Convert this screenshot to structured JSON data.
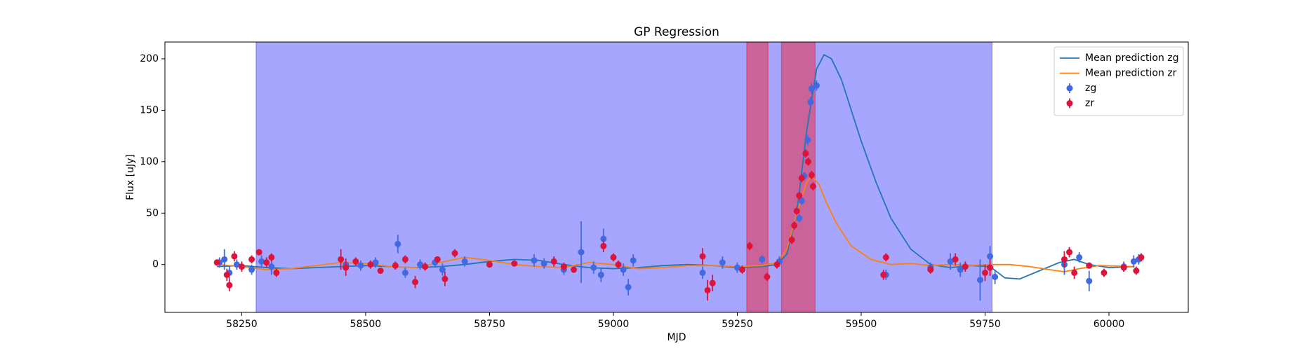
{
  "chart_data": {
    "type": "line",
    "title": "GP Regression",
    "x_label": "MJD",
    "y_label": "Flux [uJy]",
    "xlim": [
      58095,
      60160
    ],
    "ylim": [
      -46.5,
      216.3
    ],
    "xticks": [
      58250,
      58500,
      58750,
      59000,
      59250,
      59500,
      59750,
      60000
    ],
    "yticks": [
      0,
      50,
      100,
      150,
      200
    ],
    "legend": "upper right",
    "spans": [
      {
        "xlim": [
          58279,
          59764
        ],
        "color": "#0000ff",
        "opacity": 0.35
      },
      {
        "xlim": [
          59269,
          59312
        ],
        "color": "#ff0000",
        "opacity": 0.4
      },
      {
        "xlim": [
          59339,
          59407
        ],
        "color": "#ff0000",
        "opacity": 0.4
      }
    ],
    "series": [
      {
        "name": "Mean prediction zg",
        "kind": "line",
        "color": "#1f77b4",
        "x": [
          58200,
          58250,
          58300,
          58350,
          58400,
          58450,
          58500,
          58550,
          58600,
          58650,
          58700,
          58750,
          58800,
          58850,
          58900,
          58950,
          59000,
          59050,
          59100,
          59150,
          59200,
          59250,
          59300,
          59330,
          59350,
          59370,
          59390,
          59410,
          59425,
          59440,
          59460,
          59480,
          59500,
          59530,
          59560,
          59600,
          59640,
          59680,
          59720,
          59760,
          59790,
          59820,
          59860,
          59900,
          59930,
          59960,
          60000,
          60050
        ],
        "values": [
          -2,
          -1,
          -3,
          -4,
          -3,
          -2,
          -1,
          -2,
          -3,
          -2,
          0,
          3,
          5,
          4,
          0,
          -3,
          -4,
          -3,
          -1,
          0,
          -1,
          -3,
          -2,
          0,
          10,
          50,
          130,
          190,
          204,
          200,
          180,
          150,
          120,
          80,
          45,
          15,
          0,
          -3,
          -1,
          -2,
          -13,
          -14,
          -6,
          2,
          5,
          0,
          -3,
          -2
        ]
      },
      {
        "name": "Mean prediction zr",
        "kind": "line",
        "color": "#ff7f0e",
        "x": [
          58200,
          58250,
          58300,
          58350,
          58400,
          58450,
          58500,
          58550,
          58600,
          58650,
          58700,
          58750,
          58800,
          58850,
          58900,
          58950,
          59000,
          59050,
          59100,
          59150,
          59200,
          59250,
          59300,
          59330,
          59350,
          59370,
          59390,
          59400,
          59415,
          59430,
          59450,
          59480,
          59520,
          59560,
          59600,
          59640,
          59680,
          59720,
          59760,
          59800,
          59840,
          59880,
          59910,
          59940,
          59980,
          60050
        ],
        "values": [
          0,
          -2,
          -5,
          -4,
          -1,
          2,
          1,
          -2,
          -3,
          2,
          7,
          4,
          0,
          -2,
          -3,
          2,
          0,
          -4,
          -3,
          -1,
          -1,
          -2,
          -1,
          2,
          15,
          50,
          80,
          86,
          78,
          60,
          40,
          18,
          5,
          0,
          1,
          -1,
          0,
          -1,
          0,
          0,
          -2,
          -5,
          -7,
          -4,
          -1,
          -2
        ]
      },
      {
        "name": "zg",
        "kind": "errorbar",
        "color": "#4169e1",
        "x": [
          58205,
          58215,
          58225,
          58240,
          58270,
          58290,
          58310,
          58460,
          58490,
          58520,
          58565,
          58580,
          58610,
          58640,
          58655,
          58700,
          58840,
          58860,
          58900,
          58935,
          58960,
          58975,
          58980,
          59020,
          59030,
          59040,
          59180,
          59220,
          59250,
          59300,
          59335,
          59375,
          59380,
          59385,
          59392,
          59398,
          59400,
          59410,
          59550,
          59640,
          59680,
          59700,
          59740,
          59760,
          59770,
          59910,
          59940,
          59960,
          60030,
          60050,
          60060
        ],
        "values": [
          2,
          5,
          -8,
          0,
          -5,
          3,
          -2,
          0,
          -1,
          2,
          20,
          -8,
          0,
          2,
          -5,
          3,
          4,
          1,
          -5,
          12,
          -3,
          -10,
          25,
          -5,
          -22,
          4,
          -8,
          2,
          -3,
          5,
          3,
          45,
          62,
          86,
          121,
          158,
          171,
          174,
          -10,
          -3,
          3,
          -5,
          -15,
          8,
          -12,
          0,
          7,
          -16,
          -2,
          3,
          5
        ],
        "errors": [
          5,
          10,
          6,
          5,
          5,
          6,
          8,
          6,
          5,
          5,
          9,
          5,
          5,
          5,
          6,
          5,
          6,
          5,
          5,
          30,
          6,
          7,
          10,
          6,
          8,
          6,
          6,
          6,
          5,
          4,
          5,
          4,
          4,
          4,
          5,
          5,
          5,
          5,
          5,
          5,
          8,
          7,
          20,
          10,
          7,
          10,
          5,
          10,
          5,
          6,
          5
        ]
      },
      {
        "name": "zr",
        "kind": "errorbar",
        "color": "#dc143c",
        "x": [
          58200,
          58220,
          58225,
          58235,
          58250,
          58270,
          58285,
          58300,
          58310,
          58320,
          58450,
          58460,
          58480,
          58510,
          58530,
          58560,
          58580,
          58600,
          58620,
          58645,
          58660,
          58680,
          58750,
          58800,
          58880,
          58900,
          58920,
          58980,
          59000,
          59010,
          59180,
          59190,
          59200,
          59260,
          59275,
          59310,
          59330,
          59360,
          59365,
          59370,
          59375,
          59380,
          59388,
          59393,
          59400,
          59403,
          59545,
          59550,
          59640,
          59690,
          59710,
          59750,
          59760,
          59910,
          59920,
          59930,
          59960,
          59990,
          60030,
          60055,
          60065
        ],
        "values": [
          2,
          -10,
          -20,
          8,
          -2,
          5,
          12,
          2,
          7,
          -8,
          5,
          -3,
          3,
          0,
          -6,
          -1,
          5,
          -17,
          -2,
          5,
          -14,
          11,
          0,
          1,
          3,
          -2,
          -5,
          18,
          7,
          0,
          8,
          -25,
          -18,
          -5,
          18,
          -12,
          0,
          24,
          38,
          52,
          67,
          84,
          108,
          100,
          87,
          76,
          -10,
          7,
          -5,
          5,
          -2,
          -8,
          -3,
          5,
          12,
          -8,
          -1,
          -8,
          -3,
          -6,
          7
        ],
        "errors": [
          3,
          6,
          6,
          5,
          5,
          4,
          3,
          5,
          4,
          4,
          10,
          8,
          4,
          4,
          3,
          4,
          4,
          6,
          4,
          3,
          7,
          4,
          3,
          3,
          5,
          4,
          3,
          6,
          4,
          4,
          8,
          10,
          8,
          4,
          4,
          4,
          4,
          4,
          4,
          4,
          4,
          4,
          4,
          4,
          4,
          4,
          5,
          4,
          4,
          6,
          5,
          8,
          8,
          8,
          5,
          6,
          3,
          4,
          4,
          4,
          4
        ]
      }
    ]
  }
}
